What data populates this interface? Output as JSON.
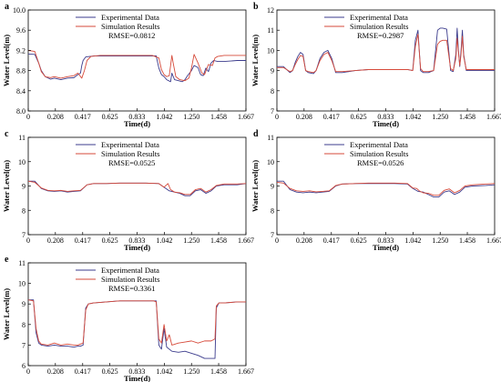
{
  "legend_labels": {
    "experimental": "Experimental Data",
    "simulation": "Simulation Results"
  },
  "colors": {
    "experimental": "#3b3b8c",
    "simulation": "#d64a3a",
    "axis": "#000000"
  },
  "chart_data": [
    {
      "type": "line",
      "panel": "a",
      "xlabel": "Time(d)",
      "ylabel": "Water Level(m)",
      "xlim": [
        0,
        1.667
      ],
      "ylim": [
        8.0,
        10.0
      ],
      "xticks": [
        "0",
        "0.208",
        "0.417",
        "0.625",
        "0.833",
        "1.042",
        "1.250",
        "1.458",
        "1.667"
      ],
      "yticks": [
        "8.0",
        "8.4",
        "8.8",
        "9.2",
        "9.6",
        "10.0"
      ],
      "annotation": "RMSE=0.0812",
      "series": [
        {
          "name": "Experimental Data",
          "x": [
            0,
            0.05,
            0.08,
            0.1,
            0.13,
            0.17,
            0.2,
            0.25,
            0.3,
            0.35,
            0.38,
            0.4,
            0.41,
            0.42,
            0.44,
            0.47,
            0.5,
            0.6,
            0.7,
            0.8,
            0.9,
            0.98,
            1.0,
            1.02,
            1.04,
            1.06,
            1.09,
            1.1,
            1.12,
            1.15,
            1.18,
            1.2,
            1.22,
            1.25,
            1.27,
            1.3,
            1.32,
            1.34,
            1.36,
            1.38,
            1.4,
            1.42,
            1.45,
            1.5,
            1.55,
            1.6,
            1.667
          ],
          "y": [
            9.13,
            9.12,
            8.95,
            8.8,
            8.68,
            8.63,
            8.65,
            8.62,
            8.65,
            8.66,
            8.72,
            8.75,
            8.9,
            9.0,
            9.07,
            9.08,
            9.09,
            9.09,
            9.09,
            9.09,
            9.09,
            9.09,
            8.85,
            8.72,
            8.68,
            8.62,
            8.58,
            8.75,
            8.62,
            8.6,
            8.58,
            8.62,
            8.7,
            8.8,
            8.9,
            8.86,
            8.72,
            8.7,
            8.85,
            8.78,
            8.95,
            9.0,
            8.98,
            8.98,
            8.99,
            9.0,
            9.0
          ]
        },
        {
          "name": "Simulation Results",
          "x": [
            0,
            0.05,
            0.08,
            0.1,
            0.13,
            0.17,
            0.2,
            0.25,
            0.3,
            0.35,
            0.38,
            0.41,
            0.43,
            0.45,
            0.48,
            0.55,
            0.65,
            0.75,
            0.85,
            0.95,
            1.0,
            1.02,
            1.04,
            1.06,
            1.08,
            1.1,
            1.11,
            1.13,
            1.16,
            1.2,
            1.23,
            1.25,
            1.27,
            1.3,
            1.33,
            1.35,
            1.38,
            1.41,
            1.43,
            1.45,
            1.5,
            1.55,
            1.6,
            1.667
          ],
          "y": [
            9.2,
            9.18,
            8.95,
            8.78,
            8.68,
            8.66,
            8.68,
            8.65,
            8.68,
            8.7,
            8.75,
            8.65,
            8.8,
            9.0,
            9.08,
            9.1,
            9.1,
            9.1,
            9.1,
            9.1,
            9.05,
            8.82,
            8.72,
            8.68,
            8.7,
            9.1,
            8.95,
            8.68,
            8.62,
            8.6,
            8.65,
            8.85,
            9.12,
            8.95,
            8.75,
            8.72,
            8.92,
            8.9,
            9.05,
            9.08,
            9.1,
            9.1,
            9.1,
            9.1
          ]
        }
      ]
    },
    {
      "type": "line",
      "panel": "b",
      "xlabel": "Time(d)",
      "ylabel": "Water Level(m)",
      "xlim": [
        0,
        1.667
      ],
      "ylim": [
        7,
        12
      ],
      "xticks": [
        "0",
        "0.208",
        "0.417",
        "0.625",
        "0.833",
        "1.042",
        "1.250",
        "1.458",
        "1.667"
      ],
      "yticks": [
        "7",
        "8",
        "9",
        "10",
        "11",
        "12"
      ],
      "annotation": "RMSE=0.2987",
      "series": [
        {
          "name": "Experimental Data",
          "x": [
            0,
            0.05,
            0.1,
            0.12,
            0.14,
            0.16,
            0.18,
            0.2,
            0.22,
            0.24,
            0.28,
            0.3,
            0.33,
            0.36,
            0.39,
            0.42,
            0.45,
            0.5,
            0.6,
            0.7,
            0.8,
            0.9,
            1.0,
            1.04,
            1.06,
            1.08,
            1.1,
            1.12,
            1.16,
            1.2,
            1.23,
            1.25,
            1.27,
            1.3,
            1.33,
            1.35,
            1.37,
            1.38,
            1.39,
            1.4,
            1.41,
            1.42,
            1.43,
            1.45,
            1.5,
            1.55,
            1.6,
            1.667
          ],
          "y": [
            9.2,
            9.2,
            8.9,
            9.0,
            9.4,
            9.7,
            9.9,
            9.8,
            9.0,
            8.9,
            8.85,
            9.0,
            9.6,
            9.9,
            10.0,
            9.6,
            8.9,
            8.9,
            9.0,
            9.05,
            9.05,
            9.05,
            9.05,
            9.0,
            10.5,
            11.0,
            9.0,
            8.9,
            8.9,
            9.0,
            11.0,
            11.1,
            11.1,
            11.05,
            9.0,
            8.95,
            9.8,
            11.1,
            10.0,
            9.2,
            10.0,
            11.0,
            9.8,
            9.0,
            9.0,
            9.0,
            9.0,
            9.0
          ]
        },
        {
          "name": "Simulation Results",
          "x": [
            0,
            0.05,
            0.1,
            0.12,
            0.14,
            0.16,
            0.18,
            0.2,
            0.22,
            0.24,
            0.28,
            0.3,
            0.33,
            0.36,
            0.39,
            0.42,
            0.45,
            0.5,
            0.6,
            0.7,
            0.8,
            0.9,
            1.0,
            1.04,
            1.06,
            1.08,
            1.1,
            1.12,
            1.16,
            1.2,
            1.23,
            1.25,
            1.27,
            1.3,
            1.33,
            1.35,
            1.37,
            1.38,
            1.39,
            1.4,
            1.41,
            1.42,
            1.43,
            1.45,
            1.5,
            1.55,
            1.6,
            1.667
          ],
          "y": [
            9.15,
            9.15,
            8.95,
            9.0,
            9.3,
            9.55,
            9.75,
            9.7,
            9.0,
            8.95,
            8.9,
            9.0,
            9.5,
            9.8,
            9.9,
            9.5,
            8.95,
            8.95,
            9.0,
            9.05,
            9.05,
            9.05,
            9.05,
            9.0,
            10.2,
            10.8,
            9.1,
            8.95,
            8.95,
            9.0,
            10.3,
            10.45,
            10.5,
            10.5,
            9.1,
            9.0,
            9.6,
            10.6,
            9.9,
            9.25,
            9.8,
            10.7,
            9.7,
            9.05,
            9.05,
            9.05,
            9.05,
            9.05
          ]
        }
      ]
    },
    {
      "type": "line",
      "panel": "c",
      "xlabel": "Time(d)",
      "ylabel": "Water Level(m)",
      "xlim": [
        0,
        1.667
      ],
      "ylim": [
        7,
        11
      ],
      "xticks": [
        "0",
        "0.208",
        "0.417",
        "0.625",
        "0.833",
        "1.042",
        "1.250",
        "1.458",
        "1.667"
      ],
      "yticks": [
        "7",
        "8",
        "9",
        "10",
        "11"
      ],
      "annotation": "RMSE=0.0525",
      "series": [
        {
          "name": "Experimental Data",
          "x": [
            0,
            0.05,
            0.1,
            0.15,
            0.2,
            0.25,
            0.3,
            0.35,
            0.4,
            0.45,
            0.5,
            0.6,
            0.7,
            0.8,
            0.9,
            1.0,
            1.04,
            1.08,
            1.12,
            1.16,
            1.2,
            1.24,
            1.28,
            1.32,
            1.36,
            1.4,
            1.44,
            1.5,
            1.6,
            1.667
          ],
          "y": [
            9.2,
            9.2,
            8.9,
            8.8,
            8.78,
            8.8,
            8.75,
            8.78,
            8.8,
            9.05,
            9.1,
            9.1,
            9.12,
            9.12,
            9.12,
            9.1,
            8.95,
            8.8,
            8.75,
            8.7,
            8.6,
            8.6,
            8.8,
            8.85,
            8.7,
            8.8,
            9.0,
            9.05,
            9.05,
            9.1
          ]
        },
        {
          "name": "Simulation Results",
          "x": [
            0,
            0.05,
            0.1,
            0.15,
            0.2,
            0.25,
            0.3,
            0.35,
            0.4,
            0.45,
            0.5,
            0.6,
            0.7,
            0.8,
            0.9,
            1.0,
            1.04,
            1.07,
            1.09,
            1.12,
            1.16,
            1.2,
            1.24,
            1.28,
            1.32,
            1.36,
            1.4,
            1.44,
            1.5,
            1.6,
            1.667
          ],
          "y": [
            9.2,
            9.15,
            8.92,
            8.82,
            8.8,
            8.82,
            8.78,
            8.8,
            8.82,
            9.05,
            9.1,
            9.1,
            9.12,
            9.12,
            9.12,
            9.1,
            8.95,
            9.1,
            8.85,
            8.75,
            8.72,
            8.65,
            8.65,
            8.85,
            8.9,
            8.75,
            8.85,
            9.02,
            9.08,
            9.08,
            9.1
          ]
        }
      ]
    },
    {
      "type": "line",
      "panel": "d",
      "xlabel": "Time(d)",
      "ylabel": "Water Level(m)",
      "xlim": [
        0,
        1.667
      ],
      "ylim": [
        7,
        11
      ],
      "xticks": [
        "0",
        "0.208",
        "0.417",
        "0.625",
        "0.833",
        "1.042",
        "1.250",
        "1.458",
        "1.667"
      ],
      "yticks": [
        "7",
        "8",
        "9",
        "10",
        "11"
      ],
      "annotation": "RMSE=0.0526",
      "series": [
        {
          "name": "Experimental Data",
          "x": [
            0,
            0.05,
            0.1,
            0.15,
            0.2,
            0.25,
            0.3,
            0.35,
            0.4,
            0.45,
            0.5,
            0.6,
            0.7,
            0.8,
            0.9,
            1.0,
            1.04,
            1.08,
            1.12,
            1.16,
            1.2,
            1.24,
            1.28,
            1.32,
            1.36,
            1.4,
            1.44,
            1.5,
            1.6,
            1.667
          ],
          "y": [
            9.2,
            9.2,
            8.85,
            8.75,
            8.72,
            8.75,
            8.72,
            8.75,
            8.78,
            9.0,
            9.08,
            9.1,
            9.1,
            9.1,
            9.1,
            9.08,
            8.9,
            8.78,
            8.75,
            8.65,
            8.55,
            8.55,
            8.75,
            8.8,
            8.65,
            8.75,
            8.95,
            9.0,
            9.02,
            9.05
          ]
        },
        {
          "name": "Simulation Results",
          "x": [
            0,
            0.05,
            0.1,
            0.15,
            0.2,
            0.25,
            0.3,
            0.35,
            0.4,
            0.45,
            0.5,
            0.6,
            0.7,
            0.8,
            0.9,
            1.0,
            1.04,
            1.07,
            1.09,
            1.12,
            1.16,
            1.2,
            1.24,
            1.28,
            1.32,
            1.36,
            1.4,
            1.44,
            1.5,
            1.6,
            1.667
          ],
          "y": [
            9.15,
            9.12,
            8.9,
            8.8,
            8.78,
            8.8,
            8.76,
            8.78,
            8.8,
            9.02,
            9.08,
            9.1,
            9.12,
            9.12,
            9.12,
            9.1,
            8.92,
            8.9,
            8.8,
            8.72,
            8.7,
            8.62,
            8.62,
            8.82,
            8.88,
            8.72,
            8.82,
            9.0,
            9.05,
            9.08,
            9.1
          ]
        }
      ]
    },
    {
      "type": "line",
      "panel": "e",
      "xlabel": "Time(d)",
      "ylabel": "Water Level(m)",
      "xlim": [
        0,
        1.667
      ],
      "ylim": [
        6,
        11
      ],
      "xticks": [
        "0",
        "0.208",
        "0.417",
        "0.625",
        "0.833",
        "1.042",
        "1.250",
        "1.458",
        "1.667"
      ],
      "yticks": [
        "6",
        "7",
        "8",
        "9",
        "10",
        "11"
      ],
      "annotation": "RMSE=0.3361",
      "series": [
        {
          "name": "Experimental Data",
          "x": [
            0,
            0.04,
            0.06,
            0.08,
            0.1,
            0.15,
            0.2,
            0.25,
            0.3,
            0.35,
            0.38,
            0.4,
            0.42,
            0.44,
            0.46,
            0.5,
            0.6,
            0.7,
            0.8,
            0.9,
            0.96,
            0.98,
            1.0,
            1.02,
            1.04,
            1.06,
            1.1,
            1.15,
            1.2,
            1.25,
            1.3,
            1.35,
            1.4,
            1.43,
            1.44,
            1.46,
            1.5,
            1.6,
            1.667
          ],
          "y": [
            9.2,
            9.2,
            7.6,
            7.1,
            7.0,
            6.95,
            7.0,
            6.95,
            6.95,
            6.9,
            6.95,
            6.95,
            7.0,
            8.8,
            9.0,
            9.05,
            9.1,
            9.15,
            9.15,
            9.15,
            9.15,
            9.15,
            7.0,
            6.8,
            7.8,
            6.9,
            6.7,
            6.65,
            6.7,
            6.6,
            6.5,
            6.35,
            6.35,
            6.35,
            8.8,
            9.05,
            9.05,
            9.1,
            9.1
          ]
        },
        {
          "name": "Simulation Results",
          "x": [
            0,
            0.04,
            0.06,
            0.08,
            0.1,
            0.15,
            0.2,
            0.25,
            0.3,
            0.35,
            0.38,
            0.4,
            0.42,
            0.44,
            0.46,
            0.5,
            0.6,
            0.7,
            0.8,
            0.9,
            0.96,
            0.98,
            1.0,
            1.02,
            1.04,
            1.06,
            1.08,
            1.1,
            1.15,
            1.2,
            1.25,
            1.3,
            1.35,
            1.4,
            1.43,
            1.44,
            1.46,
            1.5,
            1.6,
            1.667
          ],
          "y": [
            9.2,
            9.15,
            7.8,
            7.2,
            7.05,
            7.0,
            7.1,
            7.0,
            7.05,
            7.0,
            7.0,
            7.05,
            7.1,
            8.7,
            9.0,
            9.05,
            9.1,
            9.15,
            9.15,
            9.15,
            9.15,
            9.1,
            7.3,
            7.1,
            8.0,
            7.2,
            7.5,
            7.0,
            7.1,
            7.15,
            7.2,
            7.1,
            7.2,
            7.2,
            7.3,
            8.9,
            9.05,
            9.05,
            9.1,
            9.1
          ]
        }
      ]
    }
  ]
}
